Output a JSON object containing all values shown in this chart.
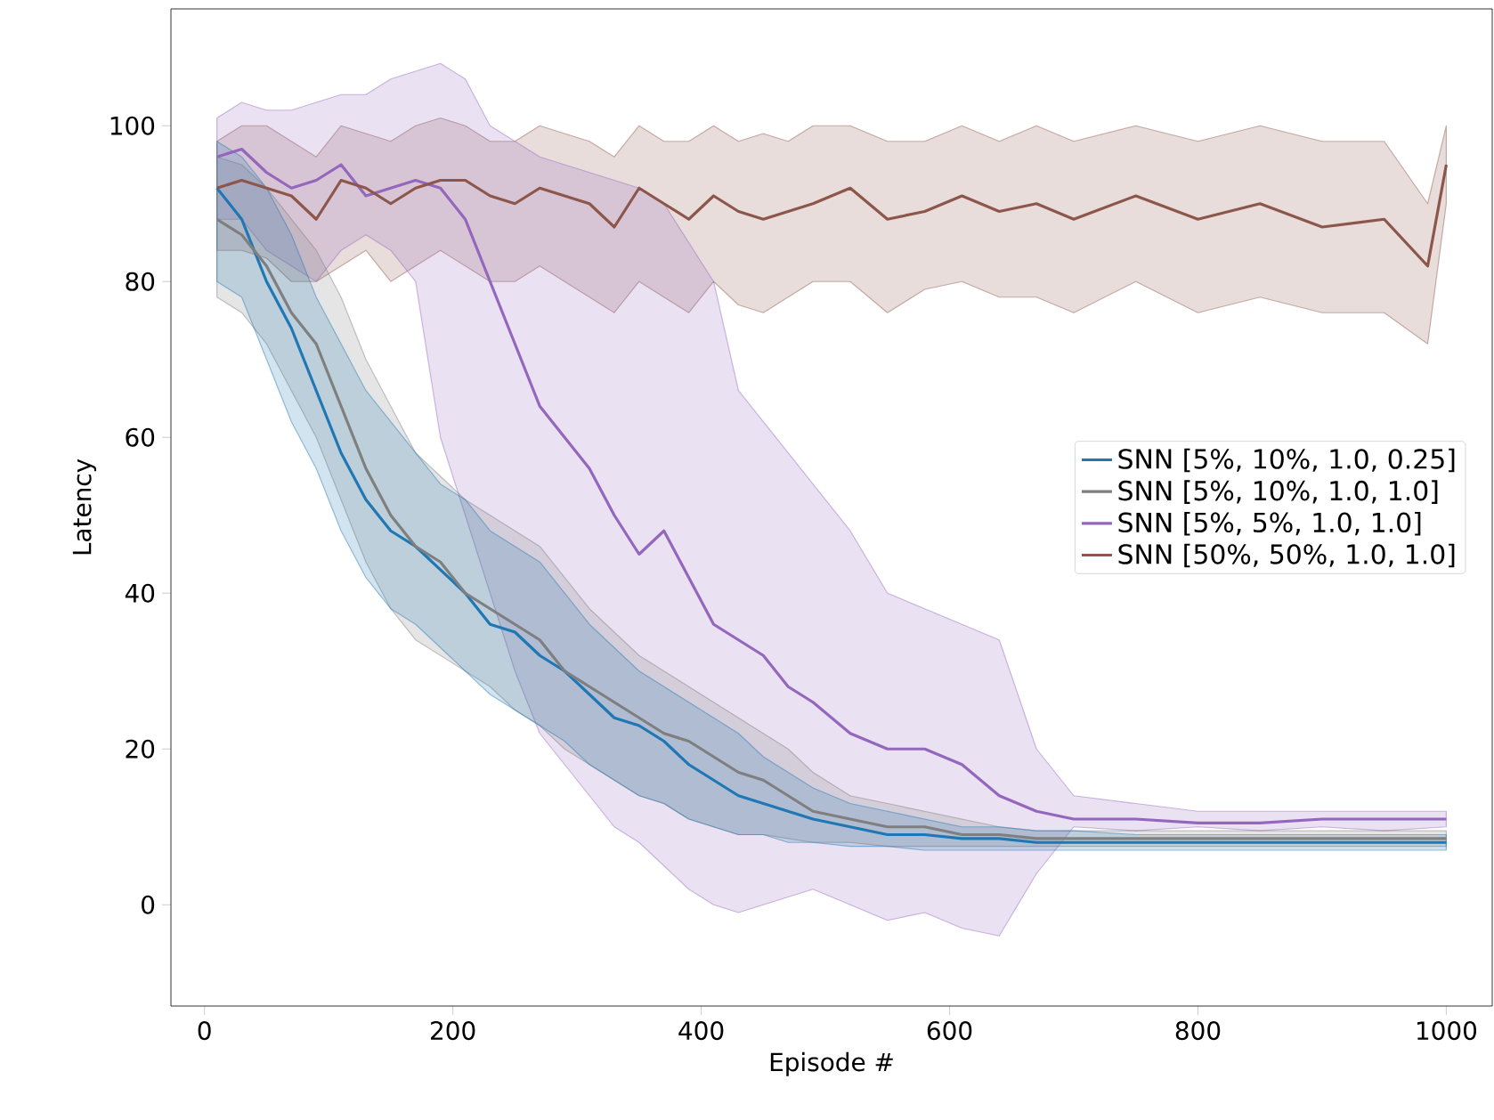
{
  "chart_data": {
    "type": "line",
    "xlabel": "Episode #",
    "ylabel": "Latency",
    "x": [
      10,
      30,
      50,
      70,
      90,
      110,
      130,
      150,
      170,
      190,
      210,
      230,
      250,
      270,
      290,
      310,
      330,
      350,
      370,
      390,
      410,
      430,
      450,
      470,
      490,
      520,
      550,
      580,
      610,
      640,
      670,
      700,
      750,
      800,
      850,
      900,
      950,
      1000
    ],
    "series": [
      {
        "name": "SNN [5%, 10%, 1.0, 0.25]",
        "color": "#1f77b4",
        "values": [
          92,
          88,
          80,
          74,
          66,
          58,
          52,
          48,
          46,
          43,
          40,
          36,
          35,
          32,
          30,
          27,
          24,
          23,
          21,
          18,
          16,
          14,
          13,
          12,
          11,
          10,
          9,
          9,
          8.5,
          8.5,
          8,
          8,
          8,
          8,
          8,
          8,
          8,
          8
        ],
        "lower": [
          80,
          78,
          70,
          62,
          56,
          48,
          42,
          38,
          36,
          33,
          30,
          27,
          25,
          23,
          21,
          18,
          16,
          14,
          13,
          11,
          10,
          9,
          9,
          8,
          8,
          7.5,
          7.5,
          7,
          7,
          7,
          7,
          7,
          7,
          7,
          7,
          7,
          7,
          7
        ],
        "upper": [
          98,
          96,
          92,
          86,
          78,
          72,
          66,
          62,
          58,
          54,
          52,
          48,
          46,
          44,
          40,
          36,
          33,
          30,
          28,
          26,
          24,
          22,
          19,
          17,
          15,
          13,
          12,
          11,
          10,
          10,
          9.5,
          9.5,
          9,
          9,
          9,
          9,
          9,
          9
        ]
      },
      {
        "name": "SNN [5%, 10%, 1.0, 1.0]",
        "color": "#7f7f7f",
        "values": [
          88,
          86,
          82,
          76,
          72,
          64,
          56,
          50,
          46,
          44,
          40,
          38,
          36,
          34,
          30,
          28,
          26,
          24,
          22,
          21,
          19,
          17,
          16,
          14,
          12,
          11,
          10,
          10,
          9,
          9,
          8.5,
          8.5,
          8.5,
          8.5,
          8.5,
          8.5,
          8.5,
          8.5
        ],
        "lower": [
          78,
          76,
          72,
          66,
          60,
          52,
          44,
          38,
          34,
          32,
          30,
          28,
          25,
          23,
          20,
          18,
          16,
          14,
          13,
          11,
          10,
          9,
          9,
          8.5,
          8,
          8,
          7.5,
          7.5,
          7.5,
          7.5,
          7.5,
          7.5,
          7.5,
          7.5,
          7.5,
          7.5,
          7.5,
          7.5
        ],
        "upper": [
          96,
          95,
          92,
          88,
          84,
          78,
          70,
          64,
          58,
          55,
          52,
          50,
          48,
          46,
          42,
          38,
          35,
          32,
          30,
          28,
          26,
          24,
          22,
          20,
          17,
          14,
          13,
          12,
          11,
          10,
          9.5,
          9.5,
          9.5,
          9.5,
          9.5,
          9.5,
          9.5,
          9.5
        ]
      },
      {
        "name": "SNN [5%, 5%, 1.0, 1.0]",
        "color": "#9467bd",
        "values": [
          96,
          97,
          94,
          92,
          93,
          95,
          91,
          92,
          93,
          92,
          88,
          80,
          72,
          64,
          60,
          56,
          50,
          45,
          48,
          42,
          36,
          34,
          32,
          28,
          26,
          22,
          20,
          20,
          18,
          14,
          12,
          11,
          11,
          10.5,
          10.5,
          11,
          11,
          11
        ],
        "lower": [
          88,
          88,
          84,
          82,
          80,
          84,
          86,
          84,
          80,
          60,
          50,
          40,
          30,
          22,
          18,
          14,
          10,
          8,
          5,
          2,
          0,
          -1,
          0,
          1,
          2,
          0,
          -2,
          -1,
          -3,
          -4,
          4,
          10,
          9.5,
          10,
          9.5,
          10,
          9.5,
          10
        ],
        "upper": [
          101,
          103,
          102,
          102,
          103,
          104,
          104,
          106,
          107,
          108,
          106,
          100,
          98,
          96,
          95,
          94,
          93,
          92,
          90,
          85,
          80,
          66,
          62,
          58,
          54,
          48,
          40,
          38,
          36,
          34,
          20,
          14,
          13,
          12,
          12,
          12,
          12,
          12
        ]
      },
      {
        "name": "SNN [50%, 50%, 1.0, 1.0]",
        "color": "#8c564b",
        "x": [
          10,
          30,
          50,
          70,
          90,
          110,
          130,
          150,
          170,
          190,
          210,
          230,
          250,
          270,
          290,
          310,
          330,
          350,
          370,
          390,
          410,
          430,
          450,
          470,
          490,
          520,
          550,
          580,
          610,
          640,
          670,
          700,
          750,
          800,
          850,
          900,
          950,
          985,
          1000
        ],
        "values": [
          92,
          93,
          92,
          91,
          88,
          93,
          92,
          90,
          92,
          93,
          93,
          91,
          90,
          92,
          91,
          90,
          87,
          92,
          90,
          88,
          91,
          89,
          88,
          89,
          90,
          92,
          88,
          89,
          91,
          89,
          90,
          88,
          91,
          88,
          90,
          87,
          88,
          82,
          95
        ],
        "lower": [
          84,
          84,
          83,
          80,
          80,
          82,
          84,
          80,
          82,
          84,
          82,
          80,
          80,
          82,
          80,
          78,
          76,
          80,
          78,
          76,
          80,
          77,
          76,
          78,
          80,
          80,
          76,
          79,
          80,
          78,
          78,
          76,
          80,
          76,
          78,
          76,
          76,
          72,
          90
        ],
        "upper": [
          98,
          100,
          100,
          98,
          96,
          100,
          99,
          98,
          100,
          101,
          100,
          98,
          98,
          100,
          99,
          98,
          96,
          100,
          98,
          98,
          100,
          98,
          99,
          98,
          100,
          100,
          98,
          98,
          100,
          98,
          100,
          98,
          100,
          98,
          100,
          98,
          98,
          90,
          100
        ]
      }
    ],
    "xlim": [
      -27,
      1037
    ],
    "ylim": [
      -13,
      115
    ],
    "xticks": [
      0,
      200,
      400,
      600,
      800,
      1000
    ],
    "yticks": [
      0,
      20,
      40,
      60,
      80,
      100
    ],
    "legend": "right",
    "grid": false,
    "marker": "none",
    "line_style": "solid"
  }
}
